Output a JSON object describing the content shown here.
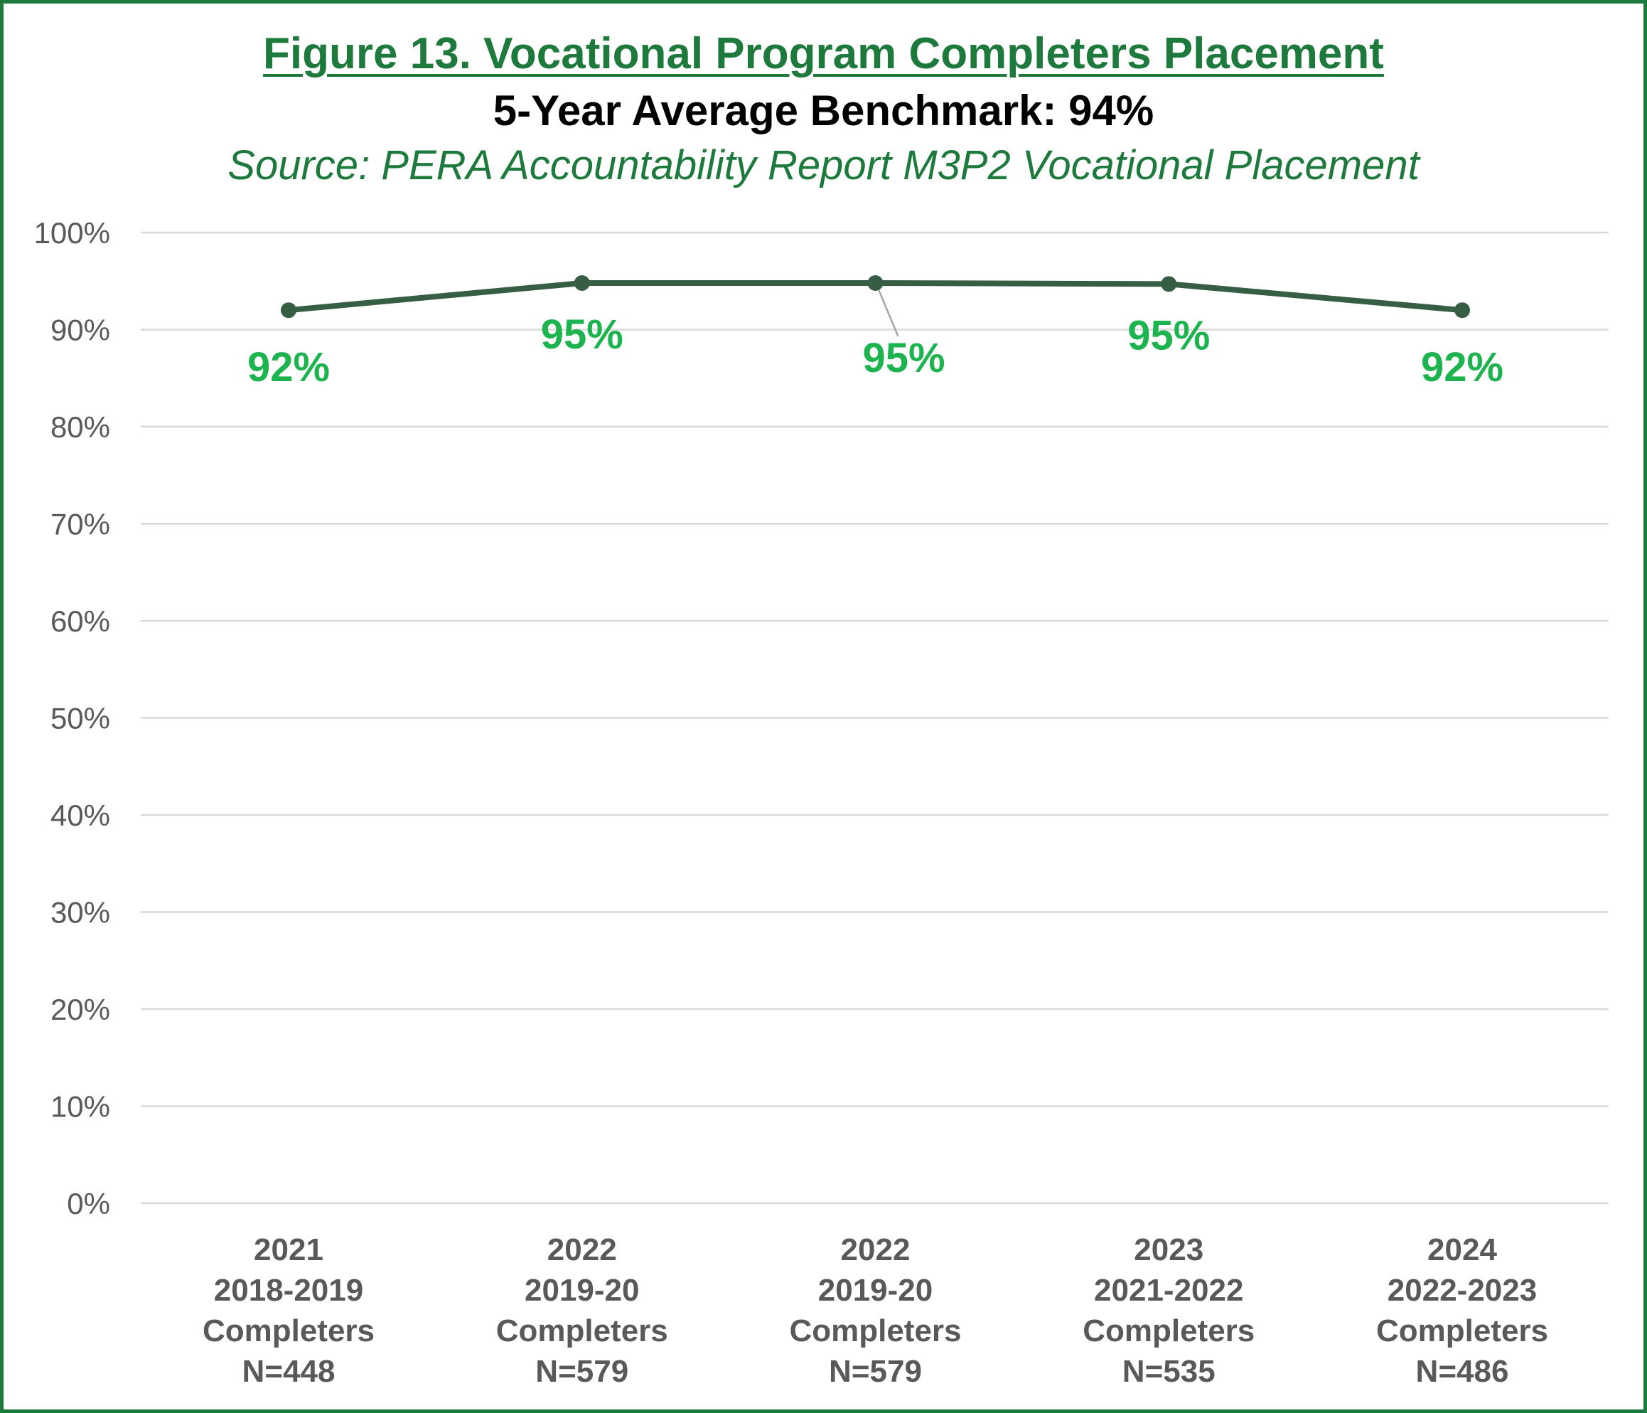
{
  "title": "Figure 13. Vocational Program Completers Placement",
  "subtitle": "5-Year Average Benchmark: 94%",
  "source": "Source: PERA Accountability Report M3P2 Vocational Placement",
  "colors": {
    "border": "#1e7a3c",
    "title": "#1e7a3c",
    "line": "#365e45",
    "data_label": "#1db34f",
    "grid": "#d9d9d9",
    "axis_text": "#595959"
  },
  "chart_data": {
    "type": "line",
    "title": "Figure 13. Vocational Program Completers Placement",
    "categories": [
      [
        "2021",
        "2018-2019",
        "Completers",
        "N=448"
      ],
      [
        "2022",
        "2019-20",
        "Completers",
        "N=579"
      ],
      [
        "2022",
        "2019-20",
        "Completers",
        "N=579"
      ],
      [
        "2023",
        "2021-2022",
        "Completers",
        "N=535"
      ],
      [
        "2024",
        "2022-2023",
        "Completers",
        "N=486"
      ]
    ],
    "values": [
      92,
      94.8,
      94.8,
      94.7,
      92
    ],
    "data_labels": [
      "92%",
      "95%",
      "95%",
      "95%",
      "92%"
    ],
    "y_ticks": [
      "0%",
      "10%",
      "20%",
      "30%",
      "40%",
      "50%",
      "60%",
      "70%",
      "80%",
      "90%",
      "100%"
    ],
    "ylim": [
      0,
      100
    ],
    "grid": true,
    "legend": "none"
  }
}
